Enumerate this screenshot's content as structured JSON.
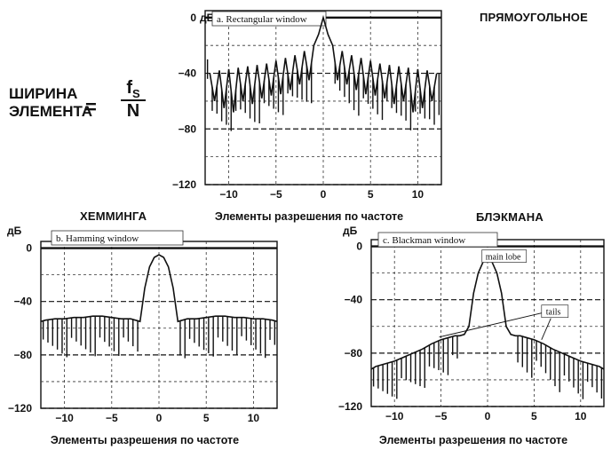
{
  "formula": {
    "line1": "ШИРИНА",
    "line2": "ЭЛЕМЕНТА",
    "equals": "=",
    "numerator": "f",
    "numerator_sub": "S",
    "denominator": "N"
  },
  "headings": {
    "rect": "ПРЯМОУГОЛЬНОЕ",
    "hamming": "ХЕММИНГА",
    "blackman": "БЛЭКМАНА"
  },
  "chart_data": [
    {
      "type": "line",
      "title": "a. Rectangular window",
      "ylabel": "дБ",
      "xlabel": "Элементы разрешения по частоте",
      "xlim": [
        -12.5,
        12.5
      ],
      "ylim": [
        -120,
        5
      ],
      "xticks": [
        -10,
        -5,
        0,
        5,
        10
      ],
      "yticks": [
        0,
        -40,
        -80,
        -120
      ],
      "tick_labels_x": [
        "−10",
        "−5",
        "0",
        "5",
        "10"
      ],
      "tick_labels_y": [
        "0",
        "−40",
        "−80",
        "−120"
      ],
      "grid": true,
      "series": [
        {
          "x": [
            -12.0,
            -11.5,
            -11.0,
            -10.5,
            -10.0,
            -9.5,
            -9.0,
            -8.5,
            -8.0,
            -7.5,
            -7.0,
            -6.5,
            -6.0,
            -5.5,
            -5.0,
            -4.5,
            -4.0,
            -3.5,
            -3.0,
            -2.5,
            -2.0,
            -1.5,
            -1.0,
            -0.5,
            0.0,
            0.5,
            1.0,
            1.5,
            2.0,
            2.5,
            3.0,
            3.5,
            4.0,
            4.5,
            5.0,
            5.5,
            6.0,
            6.5,
            7.0,
            7.5,
            8.0,
            8.5,
            9.0,
            9.5,
            10.0,
            10.5,
            11.0,
            11.5,
            12.0
          ],
          "y": [
            -40,
            -60,
            -38,
            -65,
            -37,
            -68,
            -36,
            -60,
            -35,
            -62,
            -34,
            -58,
            -33,
            -56,
            -31,
            -55,
            -29,
            -52,
            -27,
            -48,
            -24,
            -45,
            -20,
            -12,
            0,
            -12,
            -20,
            -45,
            -24,
            -48,
            -27,
            -52,
            -29,
            -55,
            -31,
            -56,
            -33,
            -58,
            -34,
            -62,
            -35,
            -60,
            -36,
            -68,
            -37,
            -65,
            -38,
            -60,
            -40
          ]
        }
      ]
    },
    {
      "type": "line",
      "title": "b. Hamming window",
      "ylabel": "дБ",
      "xlabel": "Элементы разрешения по частоте",
      "xlim": [
        -12.5,
        12.5
      ],
      "ylim": [
        -120,
        5
      ],
      "xticks": [
        -10,
        -5,
        0,
        5,
        10
      ],
      "yticks": [
        0,
        -40,
        -80,
        -120
      ],
      "tick_labels_x": [
        "−10",
        "−5",
        "0",
        "5",
        "10"
      ],
      "tick_labels_y": [
        "0",
        "−40",
        "−80",
        "−120"
      ],
      "grid": true,
      "series": [
        {
          "x": [
            -12.5,
            -12.0,
            -11.0,
            -10.0,
            -9.0,
            -8.0,
            -7.0,
            -6.0,
            -5.0,
            -4.0,
            -3.0,
            -2.0,
            -1.5,
            -1.0,
            -0.5,
            0.0,
            0.5,
            1.0,
            1.5,
            2.0,
            3.0,
            4.0,
            5.0,
            6.0,
            7.0,
            8.0,
            9.0,
            10.0,
            11.0,
            12.0,
            12.5
          ],
          "y": [
            -55,
            -54,
            -53,
            -53,
            -52,
            -52,
            -51,
            -51,
            -52,
            -53,
            -53,
            -55,
            -30,
            -14,
            -7,
            -5,
            -7,
            -14,
            -30,
            -55,
            -53,
            -53,
            -52,
            -51,
            -51,
            -52,
            -52,
            -53,
            -53,
            -54,
            -55
          ]
        }
      ]
    },
    {
      "type": "line",
      "title": "c. Blackman window",
      "ylabel": "дБ",
      "xlabel": "Элементы разрешения по частоте",
      "xlim": [
        -12.5,
        12.5
      ],
      "ylim": [
        -120,
        5
      ],
      "xticks": [
        -10,
        -5,
        0,
        5,
        10
      ],
      "yticks": [
        0,
        -40,
        -80,
        -120
      ],
      "tick_labels_x": [
        "−10",
        "−5",
        "0",
        "5",
        "10"
      ],
      "tick_labels_y": [
        "0",
        "−40",
        "−80",
        "−120"
      ],
      "grid": true,
      "annotations": [
        "main lobe",
        "tails"
      ],
      "series": [
        {
          "x": [
            -12.5,
            -12.0,
            -11.0,
            -10.0,
            -9.0,
            -8.0,
            -7.0,
            -6.0,
            -5.0,
            -4.0,
            -3.5,
            -3.0,
            -2.5,
            -2.0,
            -1.5,
            -1.0,
            -0.5,
            0.0,
            0.5,
            1.0,
            1.5,
            2.0,
            2.5,
            3.0,
            3.5,
            4.0,
            5.0,
            6.0,
            7.0,
            8.0,
            9.0,
            10.0,
            11.0,
            12.0,
            12.5
          ],
          "y": [
            -92,
            -90,
            -88,
            -86,
            -83,
            -80,
            -77,
            -73,
            -70,
            -68,
            -67,
            -67,
            -66,
            -60,
            -35,
            -20,
            -12,
            -8,
            -12,
            -20,
            -35,
            -60,
            -66,
            -67,
            -67,
            -68,
            -70,
            -73,
            -77,
            -80,
            -83,
            -86,
            -88,
            -90,
            -92
          ]
        }
      ]
    }
  ]
}
